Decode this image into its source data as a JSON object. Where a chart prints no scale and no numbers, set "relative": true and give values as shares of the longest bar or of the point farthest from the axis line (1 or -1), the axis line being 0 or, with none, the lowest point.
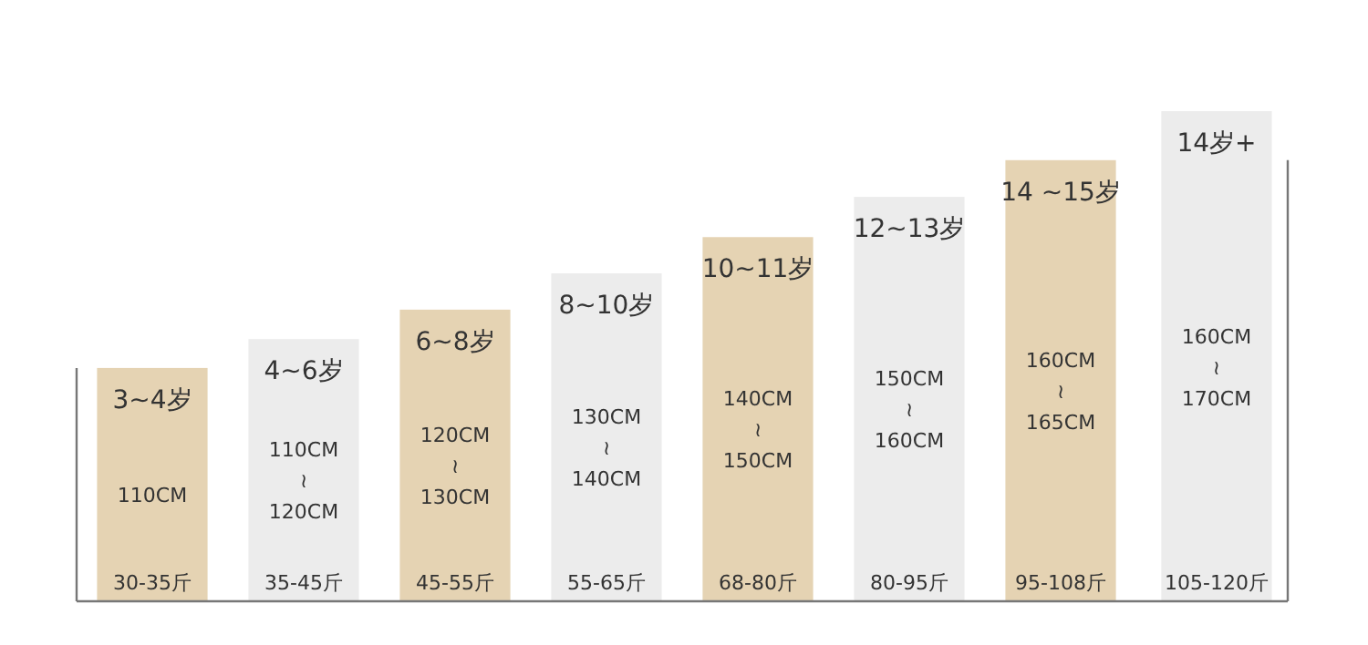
{
  "chart_data": {
    "type": "bar",
    "relative": true,
    "categories": [
      "3~4岁",
      "4~6岁",
      "6~8岁",
      "8~10岁",
      "10~11岁",
      "12~13岁",
      "14 ~15岁",
      "14岁+"
    ],
    "values": [
      0.476,
      0.535,
      0.595,
      0.669,
      0.743,
      0.825,
      0.9,
      1
    ],
    "colors": [
      "#e5d3b3",
      "#ececec",
      "#e5d3b3",
      "#ececec",
      "#e5d3b3",
      "#ececec",
      "#e5d3b3",
      "#ececec"
    ],
    "annotations": [
      "110CM",
      "110CM\n≀\n120CM",
      "120CM\n≀\n130CM",
      "130CM\n≀\n140CM",
      "140CM\n≀\n150CM",
      "150CM\n≀\n160CM",
      "160CM\n≀\n165CM",
      "160CM\n≀\n170CM",
      "30-35斤",
      "35-45斤",
      "45-55斤",
      "55-65斤",
      "68-80斤",
      "80-95斤",
      "95-108斤",
      "105-120斤"
    ]
  }
}
